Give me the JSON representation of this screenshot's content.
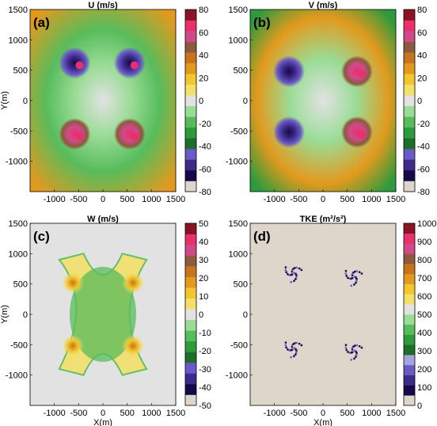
{
  "colors": {
    "velocity_scale": [
      "#ded6ca",
      "#140a4a",
      "#3e2a88",
      "#6a5ac6",
      "#1c6e2a",
      "#2d9a3c",
      "#58bc5c",
      "#9adc96",
      "#e2e2e2",
      "#f2e06a",
      "#f2c62e",
      "#e29a1e",
      "#c8741a",
      "#8c5a3e",
      "#d04a8a",
      "#e8306c",
      "#8a1424"
    ],
    "tke_scale": [
      "#ded6ca",
      "#140a4a",
      "#3e2a88",
      "#6a5ac6",
      "#a4a4e0",
      "#1c6e2a",
      "#2d9a3c",
      "#58bc5c",
      "#9adc96",
      "#e2e2e2",
      "#f2e06a",
      "#f2c62e",
      "#e29a1e",
      "#c8741a",
      "#8c5a3e",
      "#d04a8a",
      "#e8306c",
      "#8a1424"
    ]
  },
  "chart_data": [
    {
      "type": "heatmap",
      "panel_label": "(a)",
      "title": "U (m/s)",
      "ylabel": "Y(m)",
      "xlabel": "",
      "xlim": [
        -1500,
        1500
      ],
      "ylim": [
        -1500,
        1500
      ],
      "x_ticks": [
        "-1000",
        "-500",
        "0",
        "500",
        "1000",
        "1500"
      ],
      "y_ticks": [
        "1500",
        "1000",
        "500",
        "0",
        "-500",
        "-1000"
      ],
      "colorbar": {
        "range": [
          -80,
          80
        ],
        "ticks": [
          "80",
          "60",
          "40",
          "20",
          "0",
          "-20",
          "-40",
          "-60",
          "-80"
        ]
      },
      "vortices": [
        {
          "x": -580,
          "y": 620,
          "min": -72,
          "max": 60
        },
        {
          "x": 550,
          "y": 620,
          "min": -72,
          "max": 60
        },
        {
          "x": -580,
          "y": -550,
          "min": -40,
          "max": 70
        },
        {
          "x": 550,
          "y": -550,
          "min": -40,
          "max": 70
        }
      ]
    },
    {
      "type": "heatmap",
      "panel_label": "(b)",
      "title": "V (m/s)",
      "ylabel": "",
      "xlabel": "",
      "xlim": [
        -1500,
        1500
      ],
      "ylim": [
        -1500,
        1500
      ],
      "x_ticks": [
        "-1000",
        "-500",
        "0",
        "500",
        "1000",
        "1500"
      ],
      "y_ticks": [
        "1500",
        "1000",
        "500",
        "0",
        "-500",
        "-1000"
      ],
      "colorbar": {
        "range": [
          -80,
          80
        ],
        "ticks": [
          "80",
          "60",
          "40",
          "20",
          "0",
          "-20",
          "-40",
          "-60",
          "-80"
        ]
      },
      "vortices": [
        {
          "x": -700,
          "y": 480,
          "min": -70,
          "max": 0
        },
        {
          "x": 700,
          "y": 480,
          "min": -30,
          "max": 65
        },
        {
          "x": -700,
          "y": -520,
          "min": -70,
          "max": 40
        },
        {
          "x": 700,
          "y": -520,
          "min": -30,
          "max": 70
        }
      ]
    },
    {
      "type": "heatmap",
      "panel_label": "(c)",
      "title": "W (m/s)",
      "ylabel": "Y(m)",
      "xlabel": "X(m)",
      "xlim": [
        -1500,
        1500
      ],
      "ylim": [
        -1500,
        1500
      ],
      "x_ticks": [
        "-1000",
        "-500",
        "0",
        "500",
        "1000",
        "1500"
      ],
      "y_ticks": [
        "1500",
        "1000",
        "500",
        "0",
        "-500",
        "-1000"
      ],
      "colorbar": {
        "range": [
          -50,
          50
        ],
        "ticks": [
          "50",
          "40",
          "30",
          "20",
          "10",
          "0",
          "-10",
          "-20",
          "-30",
          "-40",
          "-50"
        ]
      },
      "vortices": [
        {
          "x": -620,
          "y": 520,
          "min": -20,
          "max": 30
        },
        {
          "x": 620,
          "y": 520,
          "min": -20,
          "max": 30
        },
        {
          "x": -620,
          "y": -520,
          "min": -20,
          "max": 30
        },
        {
          "x": 620,
          "y": -520,
          "min": -20,
          "max": 30
        }
      ]
    },
    {
      "type": "heatmap",
      "panel_label": "(d)",
      "title": "TKE (m²/s²)",
      "ylabel": "",
      "xlabel": "X(m)",
      "xlim": [
        -1500,
        1500
      ],
      "ylim": [
        -1500,
        1500
      ],
      "x_ticks": [
        "-1000",
        "-500",
        "0",
        "500",
        "1000",
        "1500"
      ],
      "y_ticks": [
        "1500",
        "1000",
        "500",
        "0",
        "-500",
        "-1000"
      ],
      "colorbar": {
        "range": [
          0,
          1000
        ],
        "ticks": [
          "1000",
          "900",
          "800",
          "700",
          "600",
          "500",
          "400",
          "300",
          "200",
          "100",
          "0"
        ]
      },
      "vortices": [
        {
          "x": -620,
          "y": 680,
          "min": 0,
          "max": 200
        },
        {
          "x": 620,
          "y": 620,
          "min": 0,
          "max": 200
        },
        {
          "x": -620,
          "y": -560,
          "min": 0,
          "max": 200
        },
        {
          "x": 620,
          "y": -600,
          "min": 0,
          "max": 200
        }
      ]
    }
  ]
}
